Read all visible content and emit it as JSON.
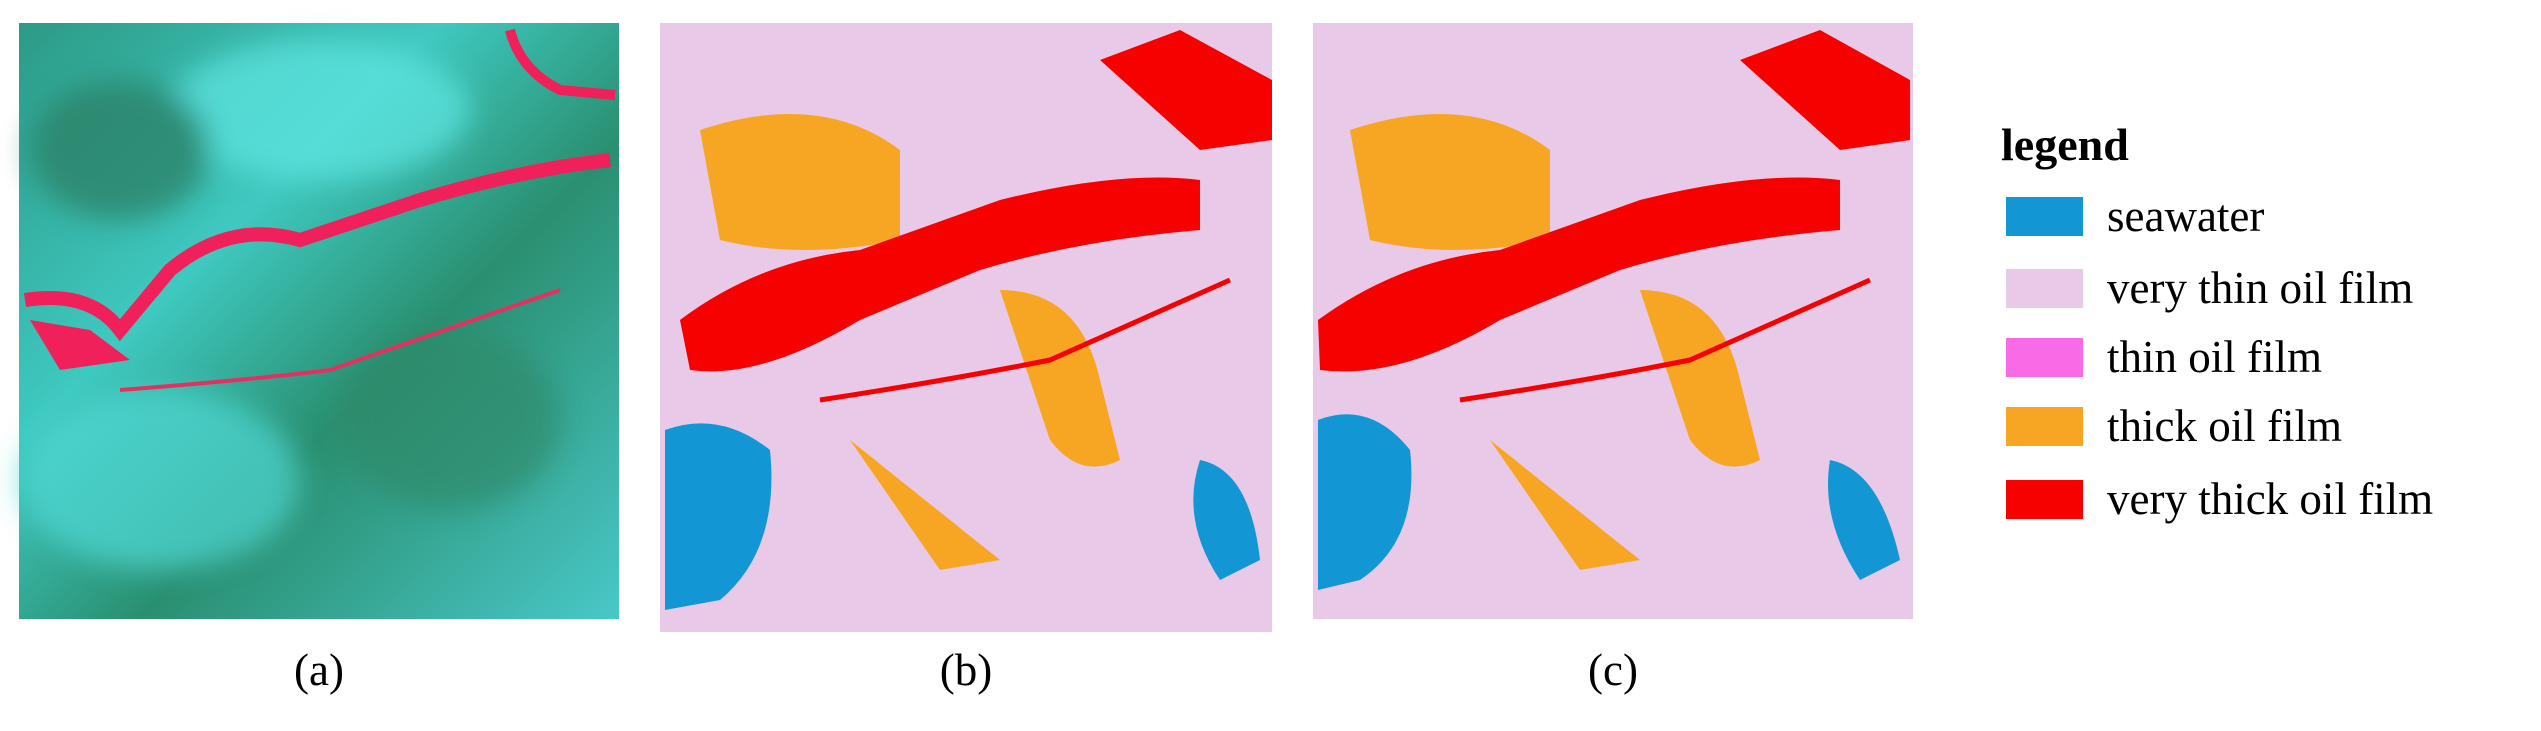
{
  "panels": [
    {
      "caption": "(a)"
    },
    {
      "caption": "(b)"
    },
    {
      "caption": "(c)"
    }
  ],
  "legend": {
    "title": "legend",
    "items": [
      {
        "label": "seawater",
        "color": "#1296d4"
      },
      {
        "label": "very thin oil film",
        "color": "#e8c9e8"
      },
      {
        "label": "thin oil film",
        "color": "#f86ae6"
      },
      {
        "label": "thick oil film",
        "color": "#f7a623"
      },
      {
        "label": "very thick oil film",
        "color": "#f70000"
      }
    ]
  }
}
